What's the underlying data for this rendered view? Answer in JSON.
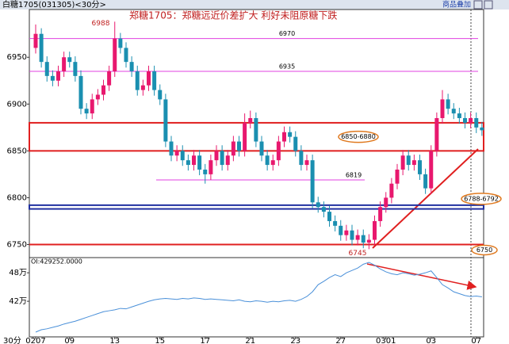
{
  "chart_data": {
    "type": "candlestick",
    "header": "白糖1705(031305)<30分>",
    "overlay_button": "商品叠加",
    "title": "郑糖1705：郑糖远近价差扩大 利好未阻原糖下跌",
    "x_axis_label": "30分",
    "categories": [
      "0207",
      null,
      null,
      null,
      null,
      null,
      "09",
      null,
      null,
      null,
      null,
      null,
      null,
      null,
      "13",
      null,
      null,
      null,
      null,
      null,
      null,
      null,
      "15",
      null,
      null,
      null,
      null,
      null,
      null,
      null,
      "17",
      null,
      null,
      null,
      null,
      null,
      null,
      null,
      "21",
      null,
      null,
      null,
      null,
      null,
      null,
      null,
      "23",
      null,
      null,
      null,
      null,
      null,
      null,
      null,
      "27",
      null,
      null,
      null,
      null,
      null,
      null,
      null,
      "0301",
      null,
      null,
      null,
      null,
      null,
      null,
      null,
      "03",
      null,
      null,
      null,
      null,
      null,
      null,
      null,
      "07",
      null
    ],
    "open": [
      6960,
      6975,
      6945,
      6930,
      6925,
      6935,
      6950,
      6945,
      6930,
      6895,
      6890,
      6905,
      6910,
      6920,
      6935,
      6970,
      6960,
      6945,
      6935,
      6915,
      6920,
      6935,
      6915,
      6905,
      6860,
      6845,
      6850,
      6840,
      6835,
      6845,
      6830,
      6825,
      6840,
      6850,
      6835,
      6845,
      6860,
      6850,
      6880,
      6885,
      6860,
      6845,
      6835,
      6840,
      6860,
      6870,
      6865,
      6850,
      6835,
      6840,
      6795,
      6790,
      6785,
      6775,
      6770,
      6760,
      6765,
      6755,
      6760,
      6752,
      6755,
      6775,
      6790,
      6800,
      6815,
      6830,
      6845,
      6835,
      6840,
      6825,
      6810,
      6850,
      6885,
      6905,
      6895,
      6890,
      6885,
      6880,
      6885,
      6875
    ],
    "high": [
      6985,
      6981,
      6951,
      6936,
      6941,
      6956,
      6956,
      6951,
      6936,
      6901,
      6911,
      6916,
      6926,
      6941,
      6988,
      6976,
      6966,
      6951,
      6941,
      6926,
      6941,
      6941,
      6921,
      6911,
      6866,
      6856,
      6856,
      6846,
      6851,
      6851,
      6836,
      6846,
      6856,
      6856,
      6851,
      6866,
      6866,
      6890,
      6893,
      6891,
      6866,
      6851,
      6846,
      6866,
      6876,
      6876,
      6871,
      6856,
      6846,
      6846,
      6801,
      6796,
      6791,
      6781,
      6776,
      6771,
      6771,
      6766,
      6766,
      6761,
      6781,
      6796,
      6806,
      6821,
      6836,
      6851,
      6851,
      6846,
      6846,
      6831,
      6856,
      6891,
      6915,
      6911,
      6901,
      6896,
      6891,
      6891,
      6891,
      6881
    ],
    "low": [
      6954,
      6939,
      6924,
      6919,
      6919,
      6929,
      6939,
      6924,
      6889,
      6884,
      6884,
      6899,
      6904,
      6914,
      6929,
      6954,
      6939,
      6929,
      6909,
      6909,
      6914,
      6909,
      6899,
      6854,
      6839,
      6839,
      6834,
      6829,
      6829,
      6824,
      6815,
      6819,
      6834,
      6829,
      6829,
      6839,
      6844,
      6844,
      6874,
      6854,
      6839,
      6829,
      6829,
      6834,
      6854,
      6859,
      6844,
      6829,
      6829,
      6789,
      6784,
      6779,
      6769,
      6764,
      6754,
      6754,
      6749,
      6749,
      6746,
      6745,
      6749,
      6769,
      6784,
      6794,
      6809,
      6824,
      6829,
      6829,
      6819,
      6804,
      6804,
      6844,
      6879,
      6889,
      6884,
      6879,
      6874,
      6874,
      6869,
      6866
    ],
    "close": [
      6975,
      6945,
      6930,
      6925,
      6935,
      6950,
      6945,
      6930,
      6895,
      6890,
      6905,
      6910,
      6920,
      6935,
      6970,
      6960,
      6945,
      6935,
      6915,
      6920,
      6935,
      6915,
      6905,
      6860,
      6845,
      6850,
      6840,
      6835,
      6845,
      6830,
      6825,
      6840,
      6850,
      6835,
      6845,
      6860,
      6850,
      6880,
      6885,
      6860,
      6845,
      6835,
      6840,
      6860,
      6870,
      6865,
      6850,
      6835,
      6840,
      6795,
      6790,
      6785,
      6775,
      6770,
      6760,
      6765,
      6755,
      6760,
      6752,
      6755,
      6775,
      6790,
      6800,
      6815,
      6830,
      6845,
      6835,
      6840,
      6825,
      6810,
      6850,
      6885,
      6905,
      6895,
      6890,
      6885,
      6880,
      6885,
      6875,
      6872
    ],
    "up_color": "#e8186e",
    "down_color": "#1a8fb0",
    "ylim": [
      6736,
      7001
    ],
    "yticks": [
      6750,
      6800,
      6850,
      6900,
      6950
    ],
    "peak": 6988,
    "trough": 6745,
    "levels": [
      {
        "value": 6970,
        "color": "#e040e0"
      },
      {
        "value": 6935,
        "color": "#e040e0"
      },
      {
        "value": 6819,
        "color": "#e040e0"
      }
    ],
    "zones": [
      {
        "label": "6850-6880",
        "low": 6850,
        "high": 6880,
        "color": "#e02020"
      },
      {
        "label": "6788-6792",
        "low": 6788,
        "high": 6792,
        "color": "#2030a0"
      }
    ],
    "support": 6750,
    "support_color": "#e02020",
    "oi": {
      "label": "OI:429252.0000",
      "color": "#4a90d9",
      "ylim": [
        345000,
        512000
      ],
      "yticks": [
        {
          "value": 480000,
          "label": "48万"
        },
        {
          "value": 420000,
          "label": "42万"
        }
      ],
      "values": [
        355000,
        360000,
        362000,
        365000,
        368000,
        372000,
        375000,
        378000,
        382000,
        386000,
        390000,
        394000,
        398000,
        400000,
        402000,
        405000,
        404000,
        408000,
        412000,
        416000,
        420000,
        423000,
        425000,
        426000,
        425000,
        424000,
        426000,
        425000,
        427000,
        426000,
        424000,
        425000,
        424000,
        423000,
        422000,
        421000,
        423000,
        420000,
        419000,
        421000,
        420000,
        418000,
        420000,
        419000,
        421000,
        422000,
        420000,
        424000,
        430000,
        440000,
        455000,
        462000,
        470000,
        476000,
        472000,
        480000,
        485000,
        490000,
        498000,
        502000,
        496000,
        488000,
        482000,
        478000,
        476000,
        480000,
        478000,
        475000,
        477000,
        480000,
        484000,
        470000,
        455000,
        448000,
        440000,
        436000,
        432000,
        430000,
        431000,
        429252
      ]
    }
  }
}
